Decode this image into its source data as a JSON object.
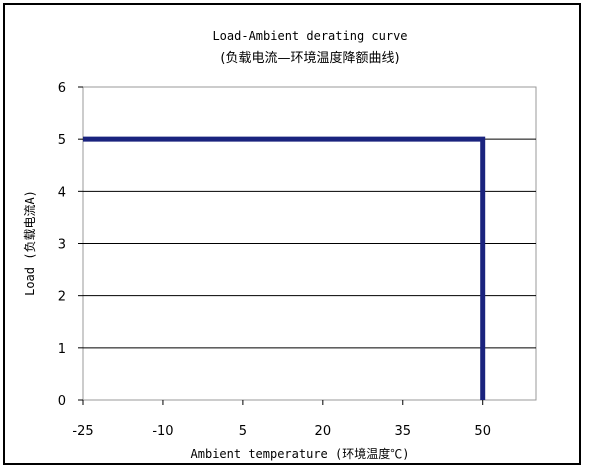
{
  "chart_data": {
    "type": "line",
    "title": "Load-Ambient derating curve",
    "subtitle": "(负载电流—环境温度降额曲线)",
    "xlabel": "Ambient temperature (环境温度℃)",
    "ylabel": "Load (负载电流A)",
    "xlim": [
      -25,
      60
    ],
    "ylim": [
      0,
      6
    ],
    "x_ticks": [
      -25,
      -10,
      5,
      20,
      35,
      50
    ],
    "x_tick_labels": [
      "-25",
      "-10",
      "5",
      "20",
      "35",
      "50"
    ],
    "y_ticks": [
      0,
      1,
      2,
      3,
      4,
      5,
      6
    ],
    "y_tick_labels": [
      "0",
      "1",
      "2",
      "3",
      "4",
      "5",
      "6"
    ],
    "grid": "horizontal",
    "legend": "none",
    "series": [
      {
        "color": "#1a237e",
        "points": [
          [
            -25,
            5
          ],
          [
            50,
            5
          ],
          [
            50,
            0
          ]
        ]
      }
    ]
  }
}
